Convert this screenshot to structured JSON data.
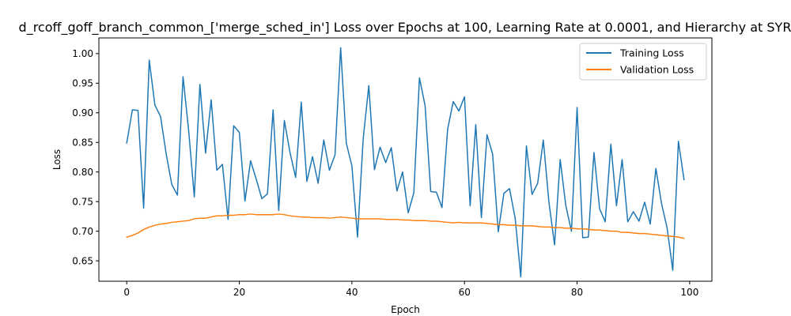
{
  "chart_data": {
    "type": "line",
    "title": "d_rcoff_goff_branch_common_['merge_sched_in'] Loss over Epochs at 100, Learning Rate at 0.0001, and Hierarchy at SYR",
    "xlabel": "Epoch",
    "ylabel": "Loss",
    "xlim": [
      -4.95,
      103.95
    ],
    "ylim": [
      0.6155,
      1.0265
    ],
    "xticks": [
      0,
      20,
      40,
      60,
      80,
      100
    ],
    "yticks": [
      0.65,
      0.7,
      0.75,
      0.8,
      0.85,
      0.9,
      0.95,
      1.0
    ],
    "ytick_labels": [
      "0.65",
      "0.70",
      "0.75",
      "0.80",
      "0.85",
      "0.90",
      "0.95",
      "1.00"
    ],
    "xtick_labels": [
      "0",
      "20",
      "40",
      "60",
      "80",
      "100"
    ],
    "grid": false,
    "legend_position": "top-right",
    "series": [
      {
        "name": "Training Loss",
        "color": "#1f77b4",
        "values": [
          0.849,
          0.905,
          0.904,
          0.739,
          0.989,
          0.913,
          0.894,
          0.831,
          0.779,
          0.761,
          0.961,
          0.87,
          0.758,
          0.948,
          0.832,
          0.922,
          0.803,
          0.813,
          0.72,
          0.878,
          0.867,
          0.751,
          0.819,
          0.788,
          0.755,
          0.763,
          0.905,
          0.735,
          0.887,
          0.833,
          0.791,
          0.918,
          0.784,
          0.826,
          0.781,
          0.854,
          0.803,
          0.829,
          1.01,
          0.849,
          0.81,
          0.69,
          0.856,
          0.946,
          0.804,
          0.842,
          0.816,
          0.841,
          0.768,
          0.8,
          0.731,
          0.765,
          0.959,
          0.912,
          0.767,
          0.766,
          0.74,
          0.872,
          0.919,
          0.903,
          0.927,
          0.743,
          0.88,
          0.723,
          0.863,
          0.83,
          0.699,
          0.764,
          0.772,
          0.722,
          0.623,
          0.844,
          0.762,
          0.781,
          0.854,
          0.749,
          0.677,
          0.821,
          0.743,
          0.7,
          0.909,
          0.689,
          0.69,
          0.833,
          0.738,
          0.716,
          0.847,
          0.743,
          0.821,
          0.716,
          0.733,
          0.717,
          0.749,
          0.712,
          0.806,
          0.747,
          0.705,
          0.634,
          0.852,
          0.787
        ]
      },
      {
        "name": "Validation Loss",
        "color": "#ff7f0e",
        "values": [
          0.69,
          0.693,
          0.697,
          0.703,
          0.707,
          0.71,
          0.712,
          0.713,
          0.715,
          0.716,
          0.717,
          0.718,
          0.721,
          0.722,
          0.722,
          0.724,
          0.726,
          0.726,
          0.727,
          0.727,
          0.728,
          0.728,
          0.729,
          0.728,
          0.728,
          0.728,
          0.728,
          0.729,
          0.728,
          0.726,
          0.725,
          0.724,
          0.724,
          0.723,
          0.723,
          0.723,
          0.722,
          0.723,
          0.724,
          0.723,
          0.722,
          0.721,
          0.721,
          0.721,
          0.721,
          0.721,
          0.72,
          0.72,
          0.72,
          0.719,
          0.719,
          0.718,
          0.718,
          0.718,
          0.717,
          0.717,
          0.716,
          0.715,
          0.714,
          0.715,
          0.714,
          0.714,
          0.714,
          0.714,
          0.713,
          0.712,
          0.711,
          0.711,
          0.71,
          0.71,
          0.709,
          0.709,
          0.709,
          0.708,
          0.707,
          0.707,
          0.706,
          0.706,
          0.705,
          0.705,
          0.704,
          0.704,
          0.703,
          0.702,
          0.702,
          0.701,
          0.7,
          0.7,
          0.698,
          0.698,
          0.697,
          0.696,
          0.696,
          0.695,
          0.694,
          0.693,
          0.692,
          0.691,
          0.69,
          0.688
        ]
      }
    ]
  }
}
